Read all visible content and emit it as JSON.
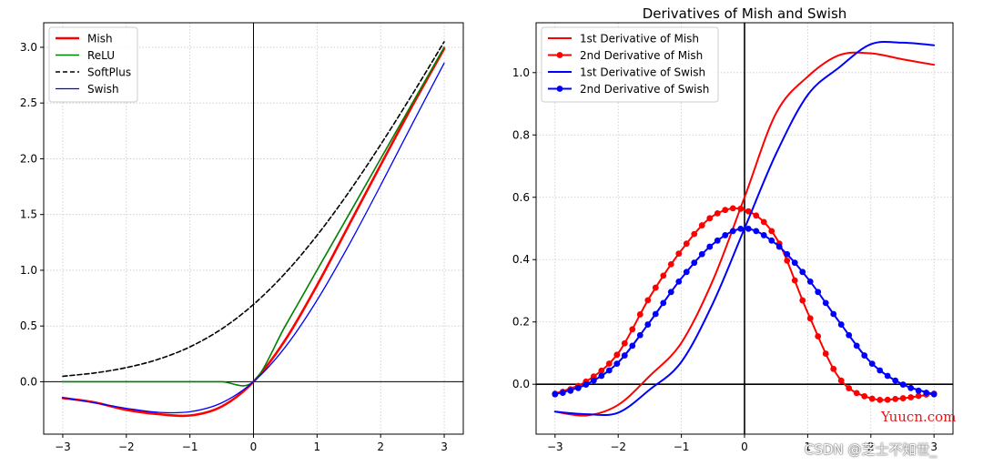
{
  "chart_data": [
    {
      "type": "line",
      "title": "",
      "xlabel": "",
      "ylabel": "",
      "xlim": [
        -3.3,
        3.3
      ],
      "ylim": [
        -0.47,
        3.22
      ],
      "xticks": [
        -3,
        -2,
        -1,
        0,
        1,
        2,
        3
      ],
      "xtick_labels": [
        "−3",
        "−2",
        "−1",
        "0",
        "1",
        "2",
        "3"
      ],
      "yticks": [
        0.0,
        0.5,
        1.0,
        1.5,
        2.0,
        2.5,
        3.0
      ],
      "ytick_labels": [
        "0.0",
        "0.5",
        "1.0",
        "1.5",
        "2.0",
        "2.5",
        "3.0"
      ],
      "grid": true,
      "legend": "top-left",
      "x": [
        -3.0,
        -2.5,
        -2.0,
        -1.5,
        -1.0,
        -0.5,
        0.0,
        0.5,
        1.0,
        1.5,
        2.0,
        2.5,
        3.0
      ],
      "series": [
        {
          "name": "Mish",
          "color": "#ff0000",
          "style": "solid",
          "width": 2.6,
          "values": [
            -0.146,
            -0.185,
            -0.252,
            -0.29,
            -0.303,
            -0.222,
            0.0,
            0.375,
            0.865,
            1.404,
            1.944,
            2.477,
            2.987
          ]
        },
        {
          "name": "ReLU",
          "color": "#008000",
          "style": "solid",
          "width": 1.6,
          "values": [
            0.0,
            0.0,
            0.0,
            0.0,
            0.0,
            0.0,
            0.0,
            0.5,
            1.0,
            1.5,
            2.0,
            2.5,
            3.0
          ]
        },
        {
          "name": "SoftPlus",
          "color": "#000000",
          "style": "dashed",
          "width": 1.6,
          "values": [
            0.049,
            0.079,
            0.127,
            0.201,
            0.313,
            0.474,
            0.693,
            0.974,
            1.313,
            1.701,
            2.127,
            2.579,
            3.049
          ]
        },
        {
          "name": "Swish",
          "color": "#0000ff",
          "style": "solid",
          "width": 1.3,
          "values": [
            -0.142,
            -0.189,
            -0.238,
            -0.274,
            -0.269,
            -0.189,
            0.0,
            0.311,
            0.731,
            1.226,
            1.762,
            2.315,
            2.858
          ]
        }
      ]
    },
    {
      "type": "line",
      "title": "Derivatives of Mish and Swish",
      "xlabel": "",
      "ylabel": "",
      "xlim": [
        -3.3,
        3.3
      ],
      "ylim": [
        -0.16,
        1.16
      ],
      "xticks": [
        -3,
        -2,
        -1,
        0,
        1,
        2,
        3
      ],
      "xtick_labels": [
        "−3",
        "−2",
        "−1",
        "0",
        "1",
        "2",
        "3"
      ],
      "yticks": [
        0.0,
        0.2,
        0.4,
        0.6,
        0.8,
        1.0
      ],
      "ytick_labels": [
        "0.0",
        "0.2",
        "0.4",
        "0.6",
        "0.8",
        "1.0"
      ],
      "grid": true,
      "legend": "top-left",
      "x": [
        -3.0,
        -2.5,
        -2.0,
        -1.5,
        -1.0,
        -0.5,
        0.0,
        0.5,
        1.0,
        1.5,
        2.0,
        2.5,
        3.0
      ],
      "series": [
        {
          "name": "1st Derivative of Mish",
          "color": "#ff0000",
          "style": "solid",
          "width": 2,
          "markers": false,
          "values": [
            -0.088,
            -0.1,
            -0.066,
            0.027,
            0.133,
            0.334,
            0.6,
            0.87,
            0.987,
            1.056,
            1.062,
            1.043,
            1.025
          ]
        },
        {
          "name": "2nd Derivative of Mish",
          "color": "#ff0000",
          "style": "solid",
          "width": 2,
          "markers": true,
          "values": [
            -0.03,
            0.01,
            0.1,
            0.28,
            0.43,
            0.54,
            0.56,
            0.47,
            0.23,
            0.02,
            -0.045,
            -0.045,
            -0.03
          ]
        },
        {
          "name": "1st Derivative of Swish",
          "color": "#0000ff",
          "style": "solid",
          "width": 2,
          "markers": false,
          "values": [
            -0.088,
            -0.096,
            -0.091,
            -0.017,
            0.072,
            0.26,
            0.5,
            0.74,
            0.928,
            1.017,
            1.091,
            1.096,
            1.088
          ]
        },
        {
          "name": "2nd Derivative of Swish",
          "color": "#0000ff",
          "style": "solid",
          "width": 2,
          "markers": true,
          "values": [
            -0.032,
            0.0,
            0.07,
            0.2,
            0.34,
            0.45,
            0.5,
            0.45,
            0.34,
            0.2,
            0.07,
            0.0,
            -0.032
          ]
        }
      ]
    }
  ],
  "watermarks": {
    "site": "Yuucn.com",
    "author": "CSDN @芝士不知世_"
  }
}
